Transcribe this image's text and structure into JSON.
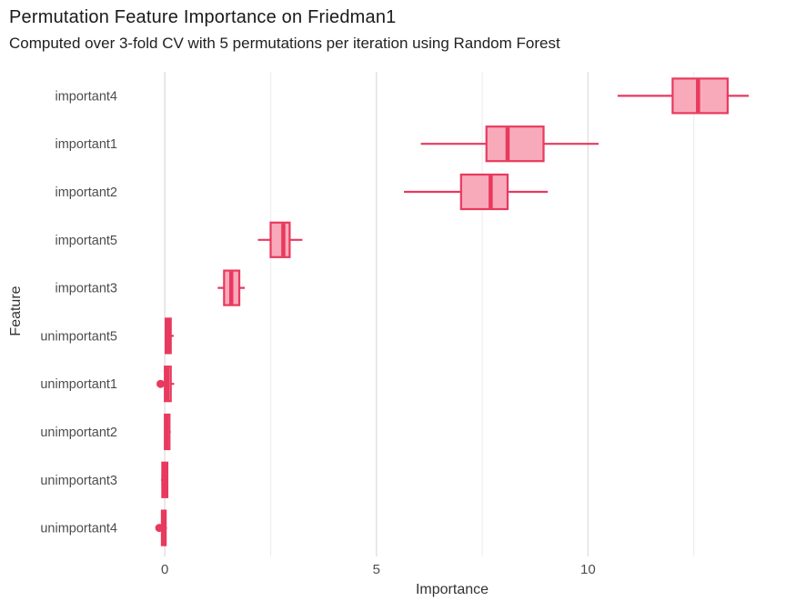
{
  "chart_data": {
    "type": "boxplot",
    "orientation": "horizontal",
    "title": "Permutation Feature Importance on Friedman1",
    "subtitle": "Computed over 3-fold CV with 5 permutations per iteration using Random Forest",
    "xlabel": "Importance",
    "ylabel": "Feature",
    "xlim": [
      -0.95,
      14.55
    ],
    "x_major_ticks": [
      0,
      5,
      10
    ],
    "x_minor_ticks": [
      2.5,
      7.5,
      12.5
    ],
    "grid": "vertical-only",
    "categories": [
      "important4",
      "important1",
      "important2",
      "important5",
      "important3",
      "unimportant5",
      "unimportant1",
      "unimportant2",
      "unimportant3",
      "unimportant4"
    ],
    "boxes": [
      {
        "feature": "important4",
        "whisker_low": 10.7,
        "q1": 12.0,
        "median": 12.6,
        "q3": 13.3,
        "whisker_high": 13.8,
        "outliers": []
      },
      {
        "feature": "important1",
        "whisker_low": 6.05,
        "q1": 7.6,
        "median": 8.1,
        "q3": 8.95,
        "whisker_high": 10.25,
        "outliers": []
      },
      {
        "feature": "important2",
        "whisker_low": 5.65,
        "q1": 7.0,
        "median": 7.7,
        "q3": 8.1,
        "whisker_high": 9.05,
        "outliers": []
      },
      {
        "feature": "important5",
        "whisker_low": 2.2,
        "q1": 2.5,
        "median": 2.8,
        "q3": 2.95,
        "whisker_high": 3.25,
        "outliers": []
      },
      {
        "feature": "important3",
        "whisker_low": 1.25,
        "q1": 1.4,
        "median": 1.57,
        "q3": 1.76,
        "whisker_high": 1.89,
        "outliers": []
      },
      {
        "feature": "unimportant5",
        "whisker_low": 0.0,
        "q1": 0.02,
        "median": 0.08,
        "q3": 0.14,
        "whisker_high": 0.21,
        "outliers": []
      },
      {
        "feature": "unimportant1",
        "whisker_low": -0.05,
        "q1": 0.0,
        "median": 0.06,
        "q3": 0.14,
        "whisker_high": 0.22,
        "outliers": [
          -0.1
        ]
      },
      {
        "feature": "unimportant2",
        "whisker_low": -0.02,
        "q1": 0.0,
        "median": 0.04,
        "q3": 0.11,
        "whisker_high": 0.14,
        "outliers": []
      },
      {
        "feature": "unimportant3",
        "whisker_low": -0.09,
        "q1": -0.06,
        "median": 0.0,
        "q3": 0.06,
        "whisker_high": 0.08,
        "outliers": []
      },
      {
        "feature": "unimportant4",
        "whisker_low": -0.08,
        "q1": -0.07,
        "median": -0.02,
        "q3": 0.02,
        "whisker_high": 0.05,
        "outliers": [
          -0.13
        ]
      }
    ],
    "colors": {
      "box_stroke": "#e8395e",
      "box_fill": "#f8aaba",
      "grid_major": "#e3e3e3",
      "grid_minor": "#eeeeee",
      "tick_text": "#4d4d4d",
      "axis_title_text": "#333333",
      "title_text": "#1a1a1a",
      "background": "#ffffff"
    }
  }
}
